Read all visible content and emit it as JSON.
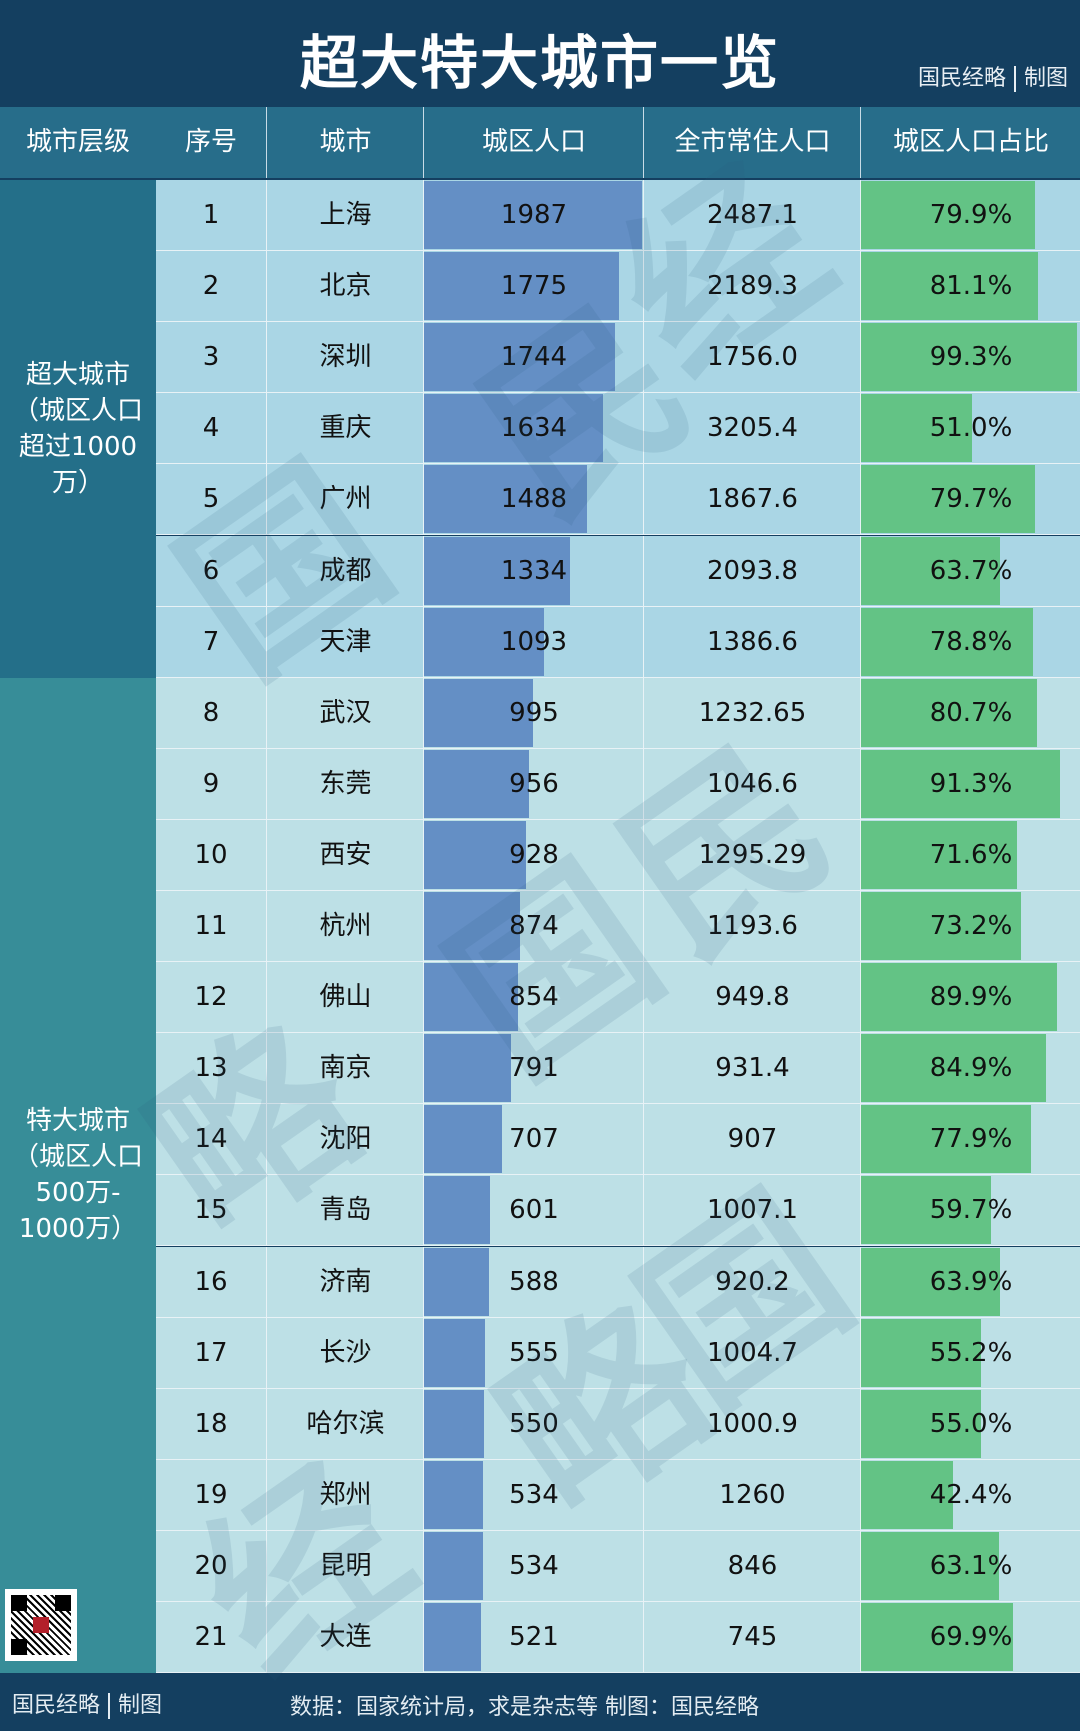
{
  "header": {
    "title": "超大特大城市一览",
    "brand": "国民经略",
    "brand_suffix": "制图"
  },
  "columns": [
    "城市层级",
    "序号",
    "城市",
    "城区人口",
    "全市常住人口",
    "城区人口占比"
  ],
  "groups": [
    {
      "label_lines": [
        "超大城市",
        "（城区人口",
        "超过1000",
        "万）"
      ],
      "start": 0,
      "count": 7,
      "color": "#246f89"
    },
    {
      "label_lines": [
        "特大城市",
        "（城区人口",
        "500万-",
        "1000万）"
      ],
      "start": 7,
      "count": 14,
      "color": "#378d98"
    }
  ],
  "rows": [
    {
      "rank": "1",
      "city": "上海",
      "urban": "1987",
      "total": "2487.1",
      "ratio": "79.9%"
    },
    {
      "rank": "2",
      "city": "北京",
      "urban": "1775",
      "total": "2189.3",
      "ratio": "81.1%"
    },
    {
      "rank": "3",
      "city": "深圳",
      "urban": "1744",
      "total": "1756.0",
      "ratio": "99.3%"
    },
    {
      "rank": "4",
      "city": "重庆",
      "urban": "1634",
      "total": "3205.4",
      "ratio": "51.0%"
    },
    {
      "rank": "5",
      "city": "广州",
      "urban": "1488",
      "total": "1867.6",
      "ratio": "79.7%"
    },
    {
      "rank": "6",
      "city": "成都",
      "urban": "1334",
      "total": "2093.8",
      "ratio": "63.7%"
    },
    {
      "rank": "7",
      "city": "天津",
      "urban": "1093",
      "total": "1386.6",
      "ratio": "78.8%"
    },
    {
      "rank": "8",
      "city": "武汉",
      "urban": "995",
      "total": "1232.65",
      "ratio": "80.7%"
    },
    {
      "rank": "9",
      "city": "东莞",
      "urban": "956",
      "total": "1046.6",
      "ratio": "91.3%"
    },
    {
      "rank": "10",
      "city": "西安",
      "urban": "928",
      "total": "1295.29",
      "ratio": "71.6%"
    },
    {
      "rank": "11",
      "city": "杭州",
      "urban": "874",
      "total": "1193.6",
      "ratio": "73.2%"
    },
    {
      "rank": "12",
      "city": "佛山",
      "urban": "854",
      "total": "949.8",
      "ratio": "89.9%"
    },
    {
      "rank": "13",
      "city": "南京",
      "urban": "791",
      "total": "931.4",
      "ratio": "84.9%"
    },
    {
      "rank": "14",
      "city": "沈阳",
      "urban": "707",
      "total": "907",
      "ratio": "77.9%"
    },
    {
      "rank": "15",
      "city": "青岛",
      "urban": "601",
      "total": "1007.1",
      "ratio": "59.7%"
    },
    {
      "rank": "16",
      "city": "济南",
      "urban": "588",
      "total": "920.2",
      "ratio": "63.9%"
    },
    {
      "rank": "17",
      "city": "长沙",
      "urban": "555",
      "total": "1004.7",
      "ratio": "55.2%"
    },
    {
      "rank": "18",
      "city": "哈尔滨",
      "urban": "550",
      "total": "1000.9",
      "ratio": "55.0%"
    },
    {
      "rank": "19",
      "city": "郑州",
      "urban": "534",
      "total": "1260",
      "ratio": "42.4%"
    },
    {
      "rank": "20",
      "city": "昆明",
      "urban": "534",
      "total": "846",
      "ratio": "63.1%"
    },
    {
      "rank": "21",
      "city": "大连",
      "urban": "521",
      "total": "745",
      "ratio": "69.9%"
    }
  ],
  "footer": {
    "brand": "国民经略",
    "brand_suffix": "制图",
    "source": "数据：国家统计局，求是杂志等  制图：国民经略"
  },
  "watermark": "国民经略",
  "colors": {
    "header_bg": "#143f60",
    "column_header_bg": "#276d8a",
    "urban_bar": "#648fc5",
    "ratio_bar": "#63c385",
    "row_bg_group1": "#aad6e5",
    "row_bg_group2": "#bde0e6"
  },
  "chart_data": {
    "type": "table",
    "title": "超大特大城市一览",
    "columns": [
      "城市层级",
      "序号",
      "城市",
      "城区人口",
      "全市常住人口",
      "城区人口占比"
    ],
    "categories": [
      "上海",
      "北京",
      "深圳",
      "重庆",
      "广州",
      "成都",
      "天津",
      "武汉",
      "东莞",
      "西安",
      "杭州",
      "佛山",
      "南京",
      "沈阳",
      "青岛",
      "济南",
      "长沙",
      "哈尔滨",
      "郑州",
      "昆明",
      "大连"
    ],
    "series": [
      {
        "name": "城区人口",
        "values": [
          1987,
          1775,
          1744,
          1634,
          1488,
          1334,
          1093,
          995,
          956,
          928,
          874,
          854,
          791,
          707,
          601,
          588,
          555,
          550,
          534,
          534,
          521
        ]
      },
      {
        "name": "全市常住人口",
        "values": [
          2487.1,
          2189.3,
          1756.0,
          3205.4,
          1867.6,
          2093.8,
          1386.6,
          1232.65,
          1046.6,
          1295.29,
          1193.6,
          949.8,
          931.4,
          907,
          1007.1,
          920.2,
          1004.7,
          1000.9,
          1260,
          846,
          745
        ]
      },
      {
        "name": "城区人口占比(%)",
        "values": [
          79.9,
          81.1,
          99.3,
          51.0,
          79.7,
          63.7,
          78.8,
          80.7,
          91.3,
          71.6,
          73.2,
          89.9,
          84.9,
          77.9,
          59.7,
          63.9,
          55.2,
          55.0,
          42.4,
          63.1,
          69.9
        ]
      }
    ],
    "groups": [
      {
        "name": "超大城市（城区人口超过1000万）",
        "cities": [
          "上海",
          "北京",
          "深圳",
          "重庆",
          "广州",
          "成都",
          "天津"
        ]
      },
      {
        "name": "特大城市（城区人口500万-1000万）",
        "cities": [
          "武汉",
          "东莞",
          "西安",
          "杭州",
          "佛山",
          "南京",
          "沈阳",
          "青岛",
          "济南",
          "长沙",
          "哈尔滨",
          "郑州",
          "昆明",
          "大连"
        ]
      }
    ],
    "source": "数据：国家统计局，求是杂志等"
  }
}
